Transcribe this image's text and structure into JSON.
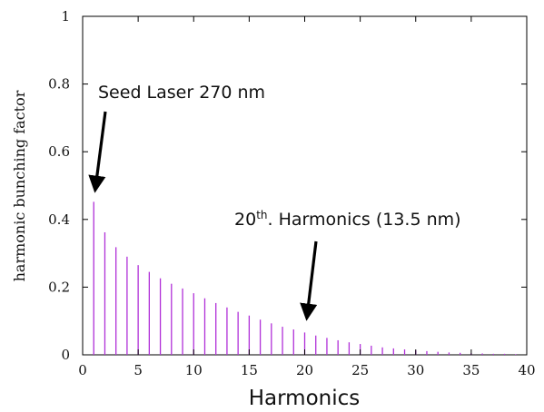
{
  "chart_data": {
    "type": "bar",
    "xlabel": "Harmonics",
    "ylabel": "harmonic bunching factor",
    "xlim": [
      0,
      40
    ],
    "ylim": [
      0,
      1
    ],
    "xticks": [
      "0",
      "5",
      "10",
      "15",
      "20",
      "25",
      "30",
      "35",
      "40"
    ],
    "yticks": [
      "0",
      "0.2",
      "0.4",
      "0.6",
      "0.8",
      "1"
    ],
    "grid": false,
    "colors": {
      "bar": "#b030d8",
      "frame": "#000000",
      "arrow": "#000000"
    },
    "series": [
      {
        "x": [
          1,
          2,
          3,
          4,
          5,
          6,
          7,
          8,
          9,
          10,
          11,
          12,
          13,
          14,
          15,
          16,
          17,
          18,
          19,
          20,
          21,
          22,
          23,
          24,
          25,
          26,
          27,
          28,
          29,
          30,
          31,
          32,
          33,
          34,
          35,
          36,
          37,
          38,
          39
        ],
        "values": [
          0.452,
          0.362,
          0.318,
          0.29,
          0.265,
          0.245,
          0.226,
          0.21,
          0.196,
          0.182,
          0.167,
          0.153,
          0.14,
          0.127,
          0.116,
          0.104,
          0.093,
          0.083,
          0.075,
          0.066,
          0.057,
          0.05,
          0.043,
          0.037,
          0.032,
          0.027,
          0.022,
          0.019,
          0.016,
          0.013,
          0.011,
          0.009,
          0.007,
          0.006,
          0.005,
          0.004,
          0.003,
          0.003,
          0.002
        ]
      }
    ],
    "annotations": [
      {
        "text": "Seed Laser 270 nm",
        "target": [
          1,
          0.452
        ]
      },
      {
        "text": "20",
        "sup": "th",
        "suffix": ". Harmonics (13.5 nm)",
        "target": [
          20,
          0.066
        ]
      }
    ]
  }
}
